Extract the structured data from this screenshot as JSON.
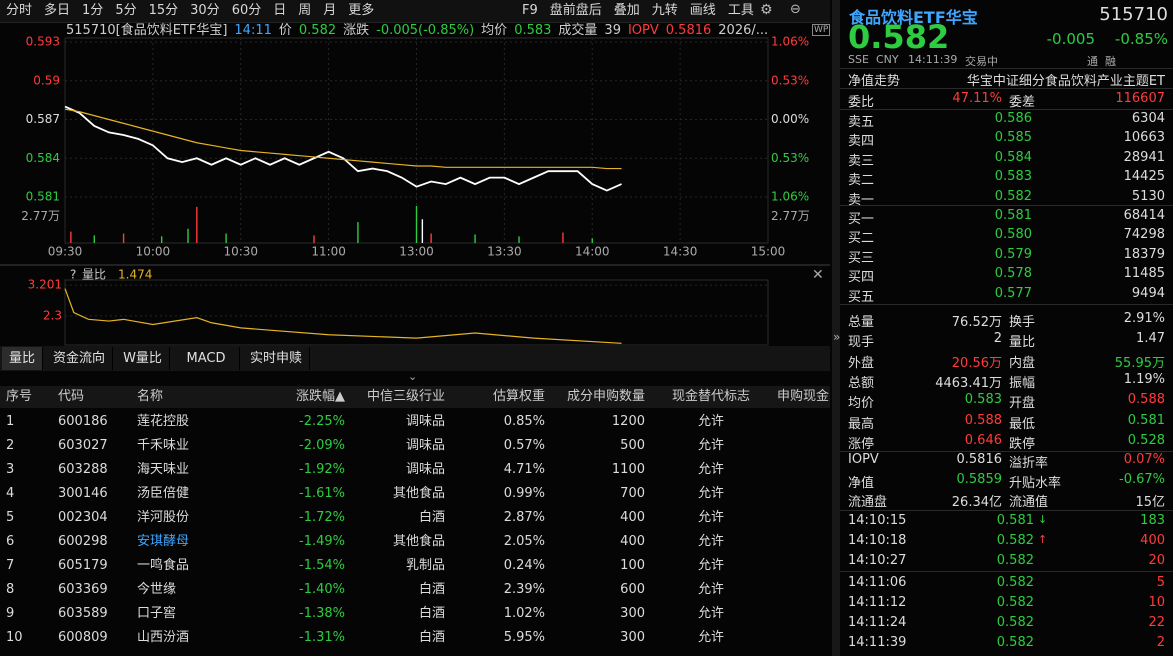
{
  "toolbar": [
    "分时",
    "多日",
    "1分",
    "5分",
    "15分",
    "30分",
    "60分",
    "日",
    "周",
    "月",
    "更多"
  ],
  "toolbar_right": [
    "F9",
    "盘前盘后",
    "叠加",
    "九转",
    "画线",
    "工具"
  ],
  "chart_header": {
    "code_name": "515710[食品饮料ETF华宝]",
    "time": "14:11",
    "price_label": "价",
    "price": "0.582",
    "change_label": "涨跌",
    "change": "-0.005(-0.85%)",
    "avg_label": "均价",
    "avg": "0.583",
    "volume_label": "成交量",
    "volume": "39",
    "iopv_label": "IOPV",
    "iopv": "0.5816",
    "date": "2026/..."
  },
  "chart_data": [
    {
      "type": "line",
      "x": [
        0,
        5,
        10,
        15,
        20,
        25,
        30,
        35,
        40,
        45,
        50,
        55,
        60,
        65,
        70,
        75,
        80,
        85,
        90,
        95,
        100,
        105,
        110,
        115,
        120,
        125,
        130,
        135,
        140,
        145,
        150,
        155,
        160,
        165,
        170,
        175,
        180,
        185,
        190
      ],
      "series": [
        {
          "color": "#ffffff",
          "values": [
            0.588,
            0.5875,
            0.5865,
            0.586,
            0.5858,
            0.5855,
            0.585,
            0.584,
            0.5837,
            0.584,
            0.5835,
            0.584,
            0.5835,
            0.584,
            0.5835,
            0.584,
            0.5835,
            0.584,
            0.5845,
            0.584,
            0.583,
            0.5832,
            0.583,
            0.5825,
            0.5818,
            0.5822,
            0.582,
            0.5825,
            0.582,
            0.5825,
            0.5825,
            0.582,
            0.5825,
            0.583,
            0.583,
            0.583,
            0.582,
            0.5815,
            0.582
          ]
        },
        {
          "color": "#e6b422",
          "values": [
            0.5878,
            0.5876,
            0.5873,
            0.587,
            0.5867,
            0.5864,
            0.5861,
            0.5858,
            0.5855,
            0.5852,
            0.585,
            0.5848,
            0.5846,
            0.5845,
            0.5844,
            0.5843,
            0.5842,
            0.5841,
            0.584,
            0.5839,
            0.5838,
            0.5837,
            0.5836,
            0.5835,
            0.5834,
            0.5834,
            0.5833,
            0.5833,
            0.5833,
            0.5833,
            0.5833,
            0.5833,
            0.5833,
            0.5833,
            0.5833,
            0.5833,
            0.5833,
            0.5832,
            0.5832
          ]
        }
      ],
      "xlim": [
        0,
        240
      ],
      "ylim": [
        0.581,
        0.593
      ],
      "yticks": [
        0.593,
        0.59,
        0.587,
        0.584,
        0.581
      ],
      "y2lim": [
        -1.06,
        1.06
      ],
      "y2ticks": [
        {
          "value": 1.06,
          "label": "1.06%"
        },
        {
          "value": 0.53,
          "label": "0.53%"
        },
        {
          "value": 0,
          "label": "0.00%"
        },
        {
          "value": -0.53,
          "label": "0.53%"
        },
        {
          "value": -1.06,
          "label": "1.06%"
        }
      ],
      "xticks": [
        {
          "value": 0,
          "label": "09:30"
        },
        {
          "value": 30,
          "label": "10:00"
        },
        {
          "value": 60,
          "label": "10:30"
        },
        {
          "value": 90,
          "label": "11:00"
        },
        {
          "value": 120,
          "label": "13:00"
        },
        {
          "value": 150,
          "label": "13:30"
        },
        {
          "value": 180,
          "label": "14:00"
        },
        {
          "value": 210,
          "label": "14:30"
        },
        {
          "value": 240,
          "label": "15:00"
        }
      ],
      "grid": true
    },
    {
      "type": "bar",
      "x": [
        2,
        10,
        20,
        33,
        42,
        45,
        55,
        85,
        100,
        120,
        122,
        125,
        140,
        155,
        170,
        180
      ],
      "values": [
        1.2,
        0.8,
        1.0,
        0.7,
        1.5,
        3.8,
        1.0,
        0.8,
        2.2,
        3.9,
        2.5,
        1.0,
        0.9,
        0.7,
        1.1,
        0.5
      ],
      "colors": [
        "#ff3b3b",
        "#2ecc40",
        "#ff3b3b",
        "#2ecc40",
        "#2ecc40",
        "#ff3b3b",
        "#2ecc40",
        "#ff3b3b",
        "#2ecc40",
        "#2ecc40",
        "#ffffff",
        "#ff3b3b",
        "#2ecc40",
        "#2ecc40",
        "#ff3b3b",
        "#2ecc40"
      ],
      "xlim": [
        0,
        240
      ],
      "ylim": [
        0,
        4
      ],
      "yticks": [
        {
          "value": 2.77,
          "label": "2.77万"
        }
      ]
    },
    {
      "type": "line",
      "title": "量比",
      "current": "1.474",
      "x": [
        0,
        3,
        8,
        15,
        20,
        30,
        45,
        50,
        60,
        90,
        120,
        140,
        160,
        190
      ],
      "series": [
        {
          "color": "#e6b422",
          "values": [
            3.1,
            2.4,
            2.2,
            2.15,
            2.2,
            2.05,
            2.25,
            2.1,
            1.95,
            1.75,
            1.65,
            1.8,
            1.65,
            1.5
          ]
        }
      ],
      "xlim": [
        0,
        240
      ],
      "ylim": [
        1.45,
        3.35
      ],
      "yticks": [
        3.201,
        2.3
      ]
    }
  ],
  "tabs": [
    "量比",
    "资金流向",
    "W量比",
    "MACD",
    "实时申赎"
  ],
  "table": {
    "header": [
      "序号",
      "代码",
      "名称",
      "涨跌幅▲",
      "中信三级行业",
      "估算权重",
      "成分申购数量",
      "现金替代标志",
      "申购现金"
    ],
    "rows": [
      [
        "1",
        "600186",
        "莲花控股",
        "-2.25%",
        "调味品",
        "0.85%",
        "1200",
        "允许"
      ],
      [
        "2",
        "603027",
        "千禾味业",
        "-2.09%",
        "调味品",
        "0.57%",
        "500",
        "允许"
      ],
      [
        "3",
        "603288",
        "海天味业",
        "-1.92%",
        "调味品",
        "4.71%",
        "1100",
        "允许"
      ],
      [
        "4",
        "300146",
        "汤臣倍健",
        "-1.61%",
        "其他食品",
        "0.99%",
        "700",
        "允许"
      ],
      [
        "5",
        "002304",
        "洋河股份",
        "-1.72%",
        "白酒",
        "2.87%",
        "400",
        "允许"
      ],
      [
        "6",
        "600298",
        "安琪酵母",
        "-1.49%",
        "其他食品",
        "2.05%",
        "400",
        "允许"
      ],
      [
        "7",
        "605179",
        "一鸣食品",
        "-1.54%",
        "乳制品",
        "0.24%",
        "100",
        "允许"
      ],
      [
        "8",
        "603369",
        "今世缘",
        "-1.40%",
        "白酒",
        "2.39%",
        "600",
        "允许"
      ],
      [
        "9",
        "603589",
        "口子窖",
        "-1.38%",
        "白酒",
        "1.02%",
        "300",
        "允许"
      ],
      [
        "10",
        "600809",
        "山西汾酒",
        "-1.31%",
        "白酒",
        "5.95%",
        "300",
        "允许"
      ]
    ]
  },
  "quote": {
    "name": "食品饮料ETF华宝",
    "code": "515710",
    "price": "0.582",
    "change": "-0.005",
    "pct": "-0.85%",
    "exchange": "SSE",
    "currency": "CNY",
    "time": "14:11:39",
    "status": "交易中",
    "tags": [
      "通",
      "融"
    ]
  },
  "nav_row": [
    "净值走势",
    "华宝中证细分食品饮料产业主题ET"
  ],
  "weibi": [
    "委比",
    "47.11%",
    "委差",
    "116607"
  ],
  "asks": [
    [
      "卖五",
      "0.586",
      "6304"
    ],
    [
      "卖四",
      "0.585",
      "10663"
    ],
    [
      "卖三",
      "0.584",
      "28941"
    ],
    [
      "卖二",
      "0.583",
      "14425"
    ],
    [
      "卖一",
      "0.582",
      "5130"
    ]
  ],
  "bids": [
    [
      "买一",
      "0.581",
      "68414"
    ],
    [
      "买二",
      "0.580",
      "74298"
    ],
    [
      "买三",
      "0.579",
      "18379"
    ],
    [
      "买四",
      "0.578",
      "11485"
    ],
    [
      "买五",
      "0.577",
      "9494"
    ]
  ],
  "stats": [
    {
      "cells": [
        "总量",
        "76.52万",
        "换手",
        "2.91%"
      ],
      "colors": [
        "#dddddd",
        "#dddddd"
      ]
    },
    {
      "cells": [
        "现手",
        "2",
        "量比",
        "1.47"
      ],
      "colors": [
        "#dddddd",
        "#dddddd"
      ]
    },
    {
      "cells": [
        "外盘",
        "20.56万",
        "内盘",
        "55.95万"
      ],
      "colors": [
        "#ff3b3b",
        "#2ecc40"
      ]
    },
    {
      "cells": [
        "总额",
        "4463.41万",
        "振幅",
        "1.19%"
      ],
      "colors": [
        "#dddddd",
        "#dddddd"
      ]
    },
    {
      "cells": [
        "均价",
        "0.583",
        "开盘",
        "0.588"
      ],
      "colors": [
        "#2ecc40",
        "#ff3b3b"
      ]
    },
    {
      "cells": [
        "最高",
        "0.588",
        "最低",
        "0.581"
      ],
      "colors": [
        "#ff3b3b",
        "#2ecc40"
      ]
    },
    {
      "cells": [
        "涨停",
        "0.646",
        "跌停",
        "0.528"
      ],
      "colors": [
        "#ff3b3b",
        "#2ecc40"
      ]
    }
  ],
  "iopv": [
    {
      "cells": [
        "IOPV",
        "0.5816",
        "溢折率",
        "0.07%"
      ],
      "colors": [
        "#dddddd",
        "#ff3b3b"
      ]
    },
    {
      "cells": [
        "净值",
        "0.5859",
        "升贴水率",
        "-0.67%"
      ],
      "colors": [
        "#2ecc40",
        "#2ecc40"
      ]
    },
    {
      "cells": [
        "流通盘",
        "26.34亿",
        "流通值",
        "15亿"
      ],
      "colors": [
        "#dddddd",
        "#dddddd"
      ]
    }
  ],
  "ticks": [
    {
      "cells": [
        "14:10:15",
        "0.581",
        "183"
      ],
      "dir": "down"
    },
    {
      "cells": [
        "14:10:18",
        "0.582",
        "400"
      ],
      "dir": "up"
    },
    {
      "cells": [
        "14:10:27",
        "0.582",
        "20"
      ],
      "dir": "up"
    },
    {
      "cells": [
        "14:11:06",
        "0.582",
        "5"
      ],
      "dir": "up"
    },
    {
      "cells": [
        "14:11:12",
        "0.582",
        "10"
      ],
      "dir": "up"
    },
    {
      "cells": [
        "14:11:24",
        "0.582",
        "22"
      ],
      "dir": "up"
    },
    {
      "cells": [
        "14:11:39",
        "0.582",
        "2"
      ],
      "dir": "up"
    }
  ]
}
